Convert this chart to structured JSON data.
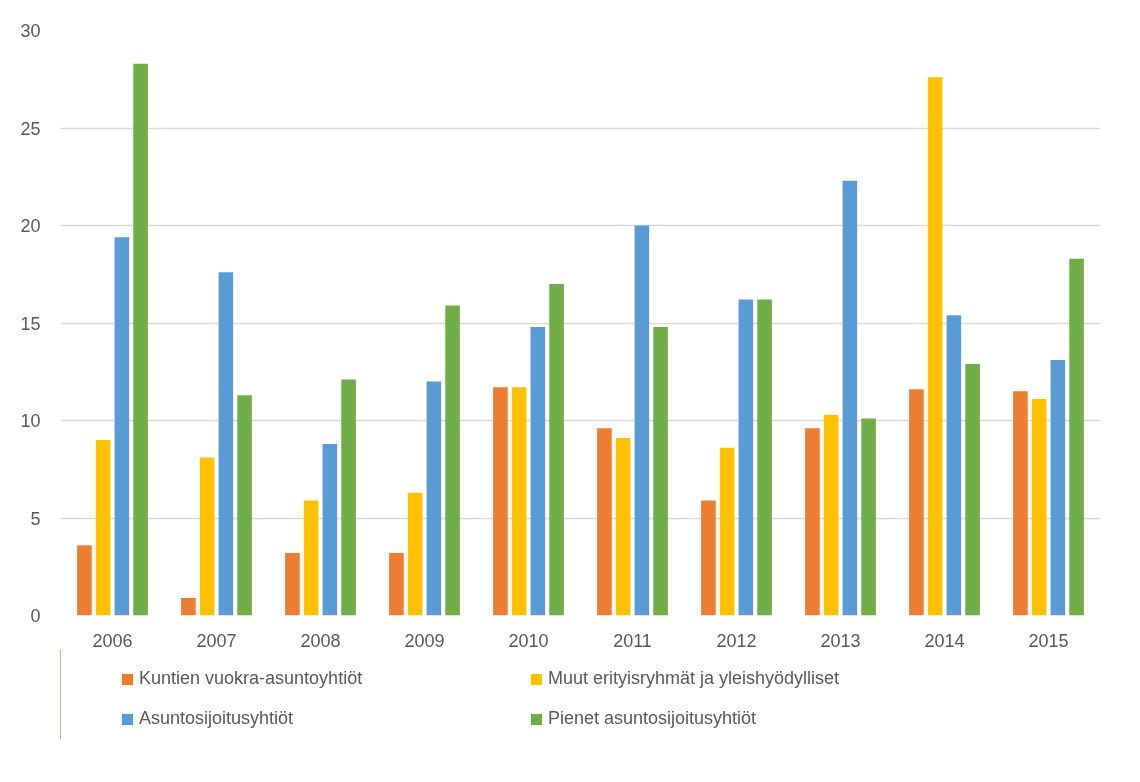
{
  "chart_data": {
    "type": "bar",
    "categories": [
      "2006",
      "2007",
      "2008",
      "2009",
      "2010",
      "2011",
      "2012",
      "2013",
      "2014",
      "2015"
    ],
    "series": [
      {
        "name": "Kuntien vuokra-asuntoyhtiöt",
        "color": "#ed7d31",
        "values": [
          3.6,
          0.9,
          3.2,
          3.2,
          11.7,
          9.6,
          5.9,
          9.6,
          11.6,
          11.5
        ]
      },
      {
        "name": "Muut erityisryhmät ja yleishyödylliset",
        "color": "#ffc000",
        "values": [
          9.0,
          8.1,
          5.9,
          6.3,
          11.7,
          9.1,
          8.6,
          10.3,
          27.6,
          11.1
        ]
      },
      {
        "name": "Asuntosijoitusyhtiöt",
        "color": "#5b9bd5",
        "values": [
          19.4,
          17.6,
          8.8,
          12.0,
          14.8,
          20.0,
          16.2,
          22.3,
          15.4,
          13.1
        ]
      },
      {
        "name": "Pienet asuntosijoitusyhtiöt",
        "color": "#70ad47",
        "values": [
          28.3,
          11.3,
          12.1,
          15.9,
          17.0,
          14.8,
          16.2,
          10.1,
          12.9,
          18.3
        ]
      }
    ],
    "ylim": [
      0,
      30
    ],
    "yticks": [
      0,
      5,
      10,
      15,
      20,
      25,
      30
    ],
    "grid": "y",
    "legend": "bottom"
  }
}
